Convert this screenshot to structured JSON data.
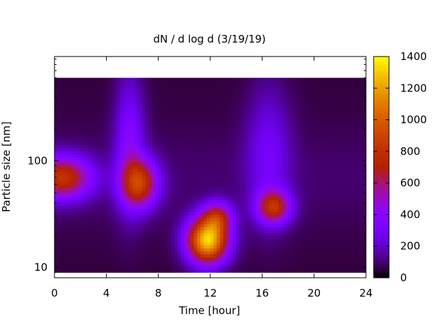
{
  "chart_data": {
    "type": "heatmap",
    "title": "dN / d log d (3/19/19)",
    "xlabel": "Time [hour]",
    "ylabel": "Particle size [nm]",
    "xlim": [
      0,
      24
    ],
    "ylim": [
      8,
      950
    ],
    "y_scale": "log",
    "x_ticks": [
      0,
      4,
      8,
      12,
      16,
      20,
      24
    ],
    "x_tick_labels": [
      "0",
      "4",
      "8",
      "12",
      "16",
      "20",
      "24"
    ],
    "y_ticks": [
      10,
      100
    ],
    "y_tick_labels": [
      "10",
      "100"
    ],
    "colorbar": {
      "min": 0,
      "max": 1400,
      "ticks": [
        0,
        200,
        400,
        600,
        800,
        1000,
        1200,
        1400
      ],
      "tick_labels": [
        "0",
        "200",
        "400",
        "600",
        "800",
        "1000",
        "1200",
        "1400"
      ],
      "colormap": "gnuplot"
    },
    "background_level": 90,
    "features": [
      {
        "t": 0.6,
        "d_nm": 70,
        "peak": 720,
        "t_spread": 1.6,
        "d_spread_log10": 0.14
      },
      {
        "t": 6.6,
        "d_nm": 62,
        "peak": 700,
        "t_spread": 1.0,
        "d_spread_log10": 0.16
      },
      {
        "t": 11.8,
        "d_nm": 18,
        "peak": 1250,
        "t_spread": 1.1,
        "d_spread_log10": 0.15
      },
      {
        "t": 12.6,
        "d_nm": 30,
        "peak": 500,
        "t_spread": 0.8,
        "d_spread_log10": 0.1
      },
      {
        "t": 16.9,
        "d_nm": 37,
        "peak": 650,
        "t_spread": 0.9,
        "d_spread_log10": 0.11
      },
      {
        "t": 5.8,
        "d_nm": 150,
        "peak": 300,
        "t_spread": 0.8,
        "d_spread_log10": 0.45
      },
      {
        "t": 16.5,
        "d_nm": 120,
        "peak": 220,
        "t_spread": 1.2,
        "d_spread_log10": 0.45
      }
    ],
    "grid": false,
    "legend": "none"
  }
}
